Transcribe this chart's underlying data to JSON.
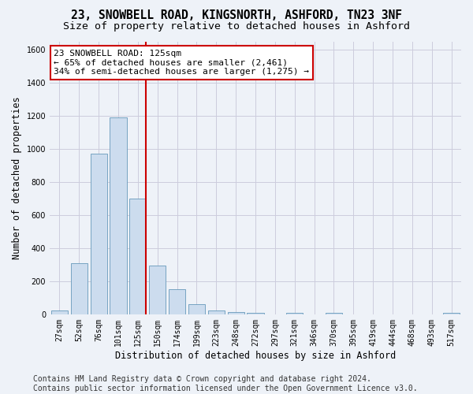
{
  "title1": "23, SNOWBELL ROAD, KINGSNORTH, ASHFORD, TN23 3NF",
  "title2": "Size of property relative to detached houses in Ashford",
  "xlabel": "Distribution of detached houses by size in Ashford",
  "ylabel": "Number of detached properties",
  "footer1": "Contains HM Land Registry data © Crown copyright and database right 2024.",
  "footer2": "Contains public sector information licensed under the Open Government Licence v3.0.",
  "annotation_line1": "23 SNOWBELL ROAD: 125sqm",
  "annotation_line2": "← 65% of detached houses are smaller (2,461)",
  "annotation_line3": "34% of semi-detached houses are larger (1,275) →",
  "bar_labels": [
    "27sqm",
    "52sqm",
    "76sqm",
    "101sqm",
    "125sqm",
    "150sqm",
    "174sqm",
    "199sqm",
    "223sqm",
    "248sqm",
    "272sqm",
    "297sqm",
    "321sqm",
    "346sqm",
    "370sqm",
    "395sqm",
    "419sqm",
    "444sqm",
    "468sqm",
    "493sqm",
    "517sqm"
  ],
  "bar_values": [
    25,
    310,
    970,
    1190,
    700,
    295,
    150,
    60,
    25,
    15,
    10,
    0,
    8,
    0,
    8,
    0,
    0,
    0,
    0,
    0,
    8
  ],
  "bar_color": "#ccdcee",
  "bar_edge_color": "#6699bb",
  "highlight_index": 4,
  "highlight_color": "#cc0000",
  "ylim": [
    0,
    1650
  ],
  "yticks": [
    0,
    200,
    400,
    600,
    800,
    1000,
    1200,
    1400,
    1600
  ],
  "grid_color": "#ccccdd",
  "bg_color": "#eef2f8",
  "annotation_box_facecolor": "#ffffff",
  "annotation_border_color": "#cc0000",
  "title1_fontsize": 10.5,
  "title2_fontsize": 9.5,
  "annotation_fontsize": 8,
  "tick_fontsize": 7,
  "ylabel_fontsize": 8.5,
  "xlabel_fontsize": 8.5,
  "footer_fontsize": 7
}
